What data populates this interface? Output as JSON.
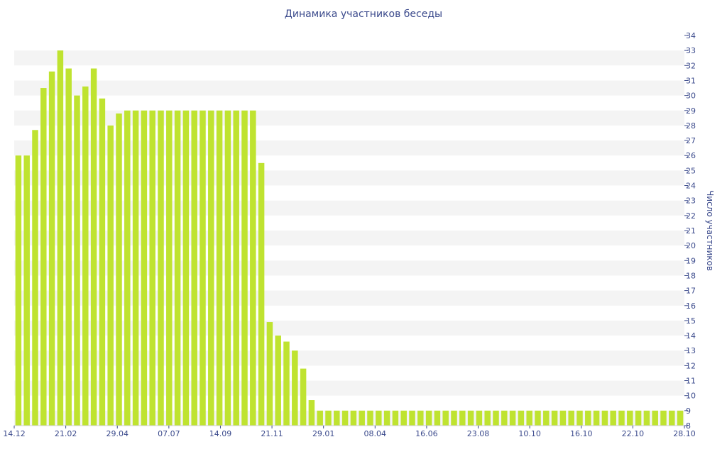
{
  "chart_data": {
    "type": "bar",
    "title": "Динамика участников беседы",
    "ylabel": "Число участников",
    "xlabel": "",
    "ylim": [
      8,
      34
    ],
    "y_axis_side": "right",
    "grid": "alternating horizontal bands",
    "bar_color": "#bfe330",
    "band_color": "#f4f4f4",
    "text_color": "#3b4a8c",
    "x_tick_labels": [
      "14.12",
      "21.02",
      "29.04",
      "07.07",
      "14.09",
      "21.11",
      "29.01",
      "08.04",
      "16.06",
      "23.08",
      "10.10",
      "16.10",
      "22.10",
      "28.10"
    ],
    "y_ticks": [
      8,
      9,
      10,
      11,
      12,
      13,
      14,
      15,
      16,
      17,
      18,
      19,
      20,
      21,
      22,
      23,
      24,
      25,
      26,
      27,
      28,
      29,
      30,
      31,
      32,
      33,
      34
    ],
    "series": [
      {
        "values": [
          26,
          26,
          27.7,
          30.5,
          31.6,
          33,
          31.8,
          30,
          30.6,
          31.8,
          29.8,
          28,
          28.8,
          29,
          29,
          29,
          29,
          29,
          29,
          29,
          29,
          29,
          29,
          29,
          29,
          29,
          29,
          29,
          29,
          25.5,
          14.9,
          14,
          13.6,
          13,
          11.8,
          9.7,
          9,
          9,
          9,
          9,
          9,
          9,
          9,
          9,
          9,
          9,
          9,
          9,
          9,
          9,
          9,
          9,
          9,
          9,
          9,
          9,
          9,
          9,
          9,
          9,
          9,
          9,
          9,
          9,
          9,
          9,
          9,
          9,
          9,
          9,
          9,
          9,
          9,
          9,
          9,
          9,
          9,
          9,
          9,
          9
        ]
      }
    ]
  }
}
